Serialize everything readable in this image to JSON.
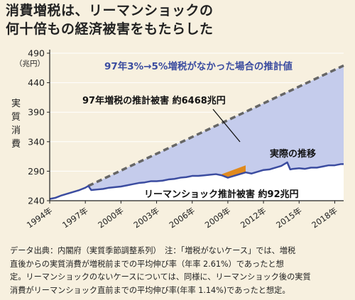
{
  "title_line1": "消費増税は、リーマンショックの",
  "title_line2": "何十倍もの経済被害をもたらした",
  "footer_lines": [
    "データ出典：内閣府（実質季節調整系列）　注：「増税がないケース」では、増税",
    "直後からの実質消費が増税前までの平均伸び率（年率 2.61%）であったと想",
    "定。リーマンショックのないケースについては、同様に、リーマンショック後の実質",
    "消費がリーマンショック直前までの平均伸び率(年率 1.14%)であったと想定。"
  ],
  "chart_data": {
    "type": "area",
    "ylabel": "実質消費",
    "yunit": "（兆円）",
    "ylim": [
      240,
      490
    ],
    "yticks": [
      240,
      290,
      340,
      390,
      440,
      490
    ],
    "xlim": [
      1994,
      2018.75
    ],
    "xticks": [
      {
        "x": 1994,
        "label": "1994年"
      },
      {
        "x": 1997,
        "label": "1997年"
      },
      {
        "x": 2000,
        "label": "2000年"
      },
      {
        "x": 2003,
        "label": "2003年"
      },
      {
        "x": 2006,
        "label": "2006年"
      },
      {
        "x": 2009,
        "label": "2009年"
      },
      {
        "x": 2012,
        "label": "2012年"
      },
      {
        "x": 2015,
        "label": "2015年"
      },
      {
        "x": 2018,
        "label": "2018年"
      }
    ],
    "series": [
      {
        "name": "実際の推移",
        "color": "#3b4ca0",
        "points": [
          [
            1994.0,
            243
          ],
          [
            1994.5,
            245
          ],
          [
            1995.0,
            249
          ],
          [
            1995.5,
            252
          ],
          [
            1996.0,
            255
          ],
          [
            1996.5,
            258
          ],
          [
            1997.0,
            262
          ],
          [
            1997.25,
            265
          ],
          [
            1997.5,
            258
          ],
          [
            1998.0,
            259
          ],
          [
            1998.5,
            260
          ],
          [
            1999.0,
            262
          ],
          [
            1999.5,
            263
          ],
          [
            2000.0,
            264
          ],
          [
            2000.5,
            266
          ],
          [
            2001.0,
            268
          ],
          [
            2001.5,
            270
          ],
          [
            2002.0,
            271
          ],
          [
            2002.5,
            273
          ],
          [
            2003.0,
            273
          ],
          [
            2003.5,
            274
          ],
          [
            2004.0,
            276
          ],
          [
            2004.5,
            277
          ],
          [
            2005.0,
            279
          ],
          [
            2005.5,
            280
          ],
          [
            2006.0,
            282
          ],
          [
            2006.5,
            282
          ],
          [
            2007.0,
            283
          ],
          [
            2007.5,
            284
          ],
          [
            2008.0,
            285
          ],
          [
            2008.5,
            283
          ],
          [
            2009.0,
            279
          ],
          [
            2009.5,
            282
          ],
          [
            2010.0,
            285
          ],
          [
            2010.5,
            288
          ],
          [
            2011.0,
            286
          ],
          [
            2011.5,
            289
          ],
          [
            2012.0,
            292
          ],
          [
            2012.5,
            293
          ],
          [
            2013.0,
            296
          ],
          [
            2013.5,
            299
          ],
          [
            2014.0,
            305
          ],
          [
            2014.25,
            293
          ],
          [
            2014.5,
            294
          ],
          [
            2015.0,
            295
          ],
          [
            2015.5,
            294
          ],
          [
            2016.0,
            296
          ],
          [
            2016.5,
            296
          ],
          [
            2017.0,
            298
          ],
          [
            2017.5,
            300
          ],
          [
            2018.0,
            300
          ],
          [
            2018.5,
            302
          ],
          [
            2018.75,
            302
          ]
        ]
      },
      {
        "name": "97年3%→5%増税がなかった場合の推計値",
        "color": "#666666",
        "points": [
          [
            1997.25,
            265
          ],
          [
            2018.75,
            469
          ]
        ]
      },
      {
        "name": "リーマンショックのないケース",
        "color": "#e08a1e",
        "points": [
          [
            2008.5,
            285
          ],
          [
            2010.5,
            300
          ]
        ]
      }
    ],
    "annotations": {
      "no_tax_hike": "97年3%→5%増税がなかった場合の推計値",
      "tax_damage": "97年増税の推計被害 約6468兆円",
      "actual": "実際の推移",
      "lehman_damage": "リーマンショック推計被害 約92兆円"
    },
    "colors": {
      "area_fill": "#c5ccec",
      "damage_fill": "#e08a1e",
      "grid": "#ffffff",
      "white_fill": "#ffffff"
    }
  }
}
